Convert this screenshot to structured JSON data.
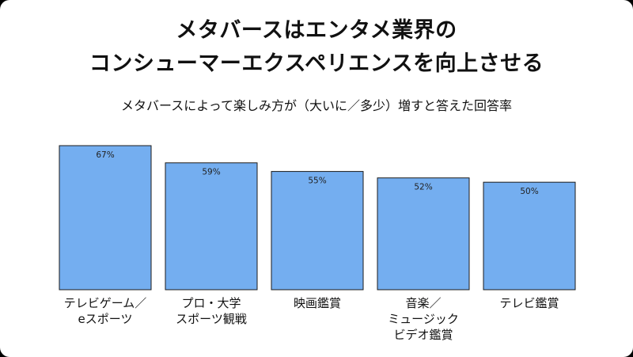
{
  "title_line1": "メタバースはエンタメ業界の",
  "title_line2": "コンシューマーエクスペリエンスを向上させる",
  "chart_data": {
    "type": "bar",
    "title": "メタバースはエンタメ業界のコンシューマーエクスペリエンスを向上させる",
    "subtitle": "メタバースによって楽しみ方が（大いに／多少）増すと答えた回答率",
    "categories": [
      [
        "テレビゲーム／",
        "eスポーツ"
      ],
      [
        "プロ・大学",
        "スポーツ観戦"
      ],
      [
        "映画鑑賞"
      ],
      [
        "音楽／",
        "ミュージック",
        "ビデオ鑑賞"
      ],
      [
        "テレビ鑑賞"
      ]
    ],
    "values": [
      67,
      59,
      55,
      52,
      50
    ],
    "value_labels": [
      "67%",
      "59%",
      "55%",
      "52%",
      "50%"
    ],
    "ylim": [
      0,
      67
    ],
    "bar_color": "#74aef0",
    "grid": false,
    "legend": "none"
  }
}
